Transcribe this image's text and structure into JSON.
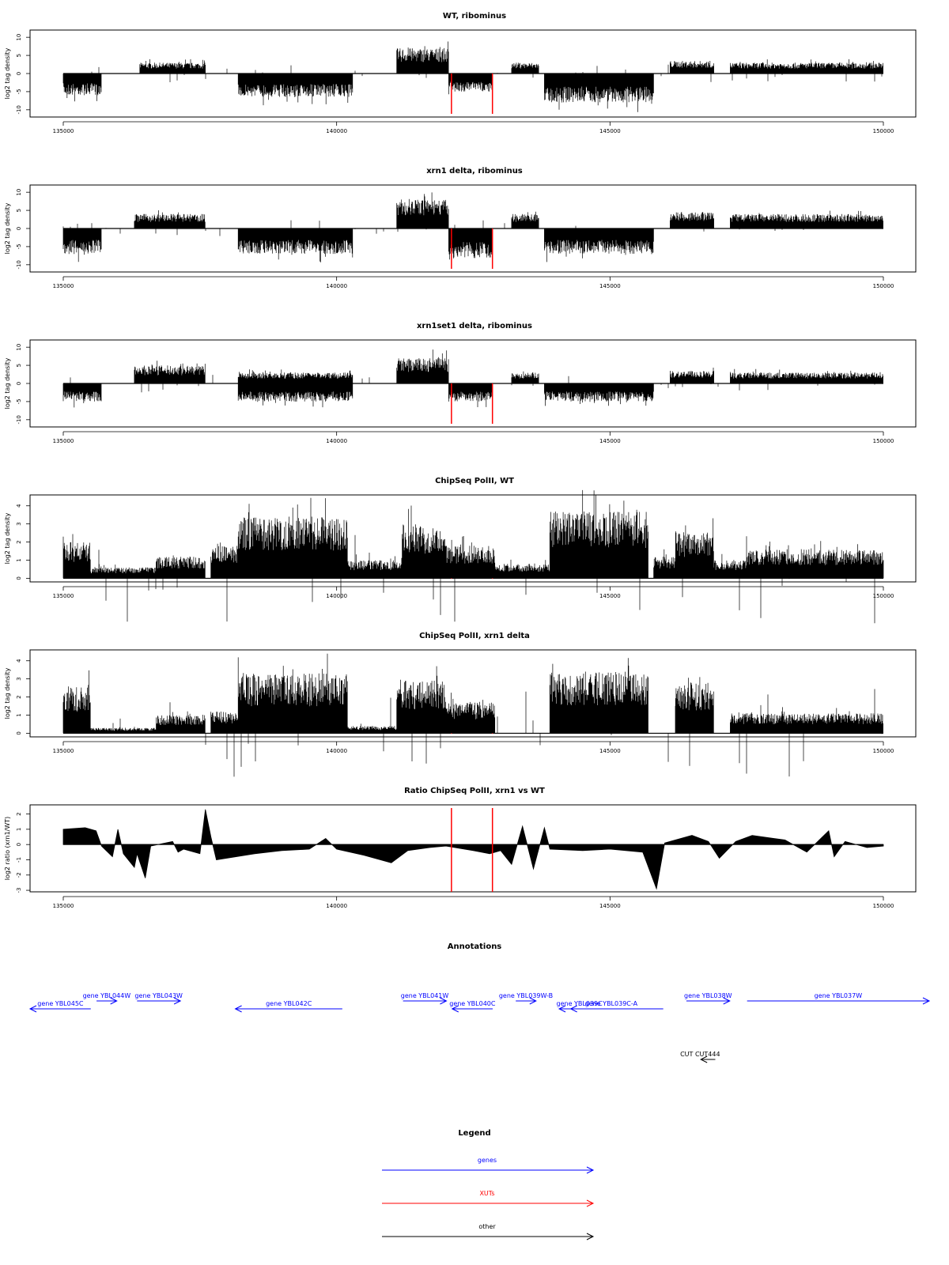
{
  "colors": {
    "signal": "#000000",
    "marker": "#ff0000",
    "genes": "#0000ff",
    "xuts": "#ff0000",
    "other": "#000000"
  },
  "chart_data": [
    {
      "type": "area",
      "title": "WT, ribominus",
      "ylabel": "log2 tag density",
      "xlim": [
        135000,
        150000
      ],
      "ylim": [
        -12,
        12
      ],
      "yticks": [
        -10,
        -5,
        0,
        5,
        10
      ],
      "xticks": [
        135000,
        140000,
        145000,
        150000
      ],
      "red_markers_x": [
        142100,
        142850
      ],
      "segments": [
        {
          "x0": 135000,
          "x1": 135700,
          "amp": -6
        },
        {
          "x0": 136400,
          "x1": 137600,
          "amp": 3
        },
        {
          "x0": 138200,
          "x1": 140300,
          "amp": -6.5
        },
        {
          "x0": 140300,
          "x1": 141100,
          "amp": 0
        },
        {
          "x0": 141100,
          "x1": 142050,
          "amp": 7
        },
        {
          "x0": 142050,
          "x1": 142850,
          "amp": -5
        },
        {
          "x0": 143200,
          "x1": 143700,
          "amp": 3
        },
        {
          "x0": 143800,
          "x1": 145800,
          "amp": -8
        },
        {
          "x0": 146100,
          "x1": 146900,
          "amp": 3.5
        },
        {
          "x0": 147200,
          "x1": 150000,
          "amp": 3
        }
      ]
    },
    {
      "type": "area",
      "title": "xrn1 delta, ribominus",
      "ylabel": "log2 tag density",
      "xlim": [
        135000,
        150000
      ],
      "ylim": [
        -12,
        12
      ],
      "yticks": [
        -10,
        -5,
        0,
        5,
        10
      ],
      "xticks": [
        135000,
        140000,
        145000,
        150000
      ],
      "red_markers_x": [
        142100,
        142850
      ],
      "segments": [
        {
          "x0": 135000,
          "x1": 135700,
          "amp": -7
        },
        {
          "x0": 136300,
          "x1": 137600,
          "amp": 4
        },
        {
          "x0": 138200,
          "x1": 140300,
          "amp": -7
        },
        {
          "x0": 141100,
          "x1": 142050,
          "amp": 8
        },
        {
          "x0": 142050,
          "x1": 142850,
          "amp": -8
        },
        {
          "x0": 143200,
          "x1": 143700,
          "amp": 4
        },
        {
          "x0": 143800,
          "x1": 145800,
          "amp": -7
        },
        {
          "x0": 146100,
          "x1": 146900,
          "amp": 4.5
        },
        {
          "x0": 147200,
          "x1": 150000,
          "amp": 4
        }
      ]
    },
    {
      "type": "area",
      "title": "xrn1set1 delta, ribominus",
      "ylabel": "log2 tag density",
      "xlim": [
        135000,
        150000
      ],
      "ylim": [
        -12,
        12
      ],
      "yticks": [
        -10,
        -5,
        0,
        5,
        10
      ],
      "xticks": [
        135000,
        140000,
        145000,
        150000
      ],
      "red_markers_x": [
        142100,
        142850
      ],
      "segments": [
        {
          "x0": 135000,
          "x1": 135700,
          "amp": -5
        },
        {
          "x0": 136300,
          "x1": 137600,
          "amp": 5
        },
        {
          "x0": 138200,
          "x1": 140300,
          "amp": -5
        },
        {
          "x0": 138200,
          "x1": 140300,
          "amp": 3
        },
        {
          "x0": 141100,
          "x1": 142050,
          "amp": 7
        },
        {
          "x0": 142050,
          "x1": 142850,
          "amp": -5
        },
        {
          "x0": 143200,
          "x1": 143700,
          "amp": 3
        },
        {
          "x0": 143800,
          "x1": 145800,
          "amp": -5
        },
        {
          "x0": 146100,
          "x1": 146900,
          "amp": 3.5
        },
        {
          "x0": 147200,
          "x1": 150000,
          "amp": 3
        }
      ]
    },
    {
      "type": "bar",
      "title": "ChipSeq PolII, WT",
      "ylabel": "log2 tag density",
      "xlim": [
        135000,
        150000
      ],
      "ylim": [
        -0.2,
        4.6
      ],
      "yticks": [
        0,
        1,
        2,
        3,
        4
      ],
      "xticks": [
        135000,
        140000,
        145000,
        150000
      ],
      "red_markers_x": [
        142100,
        142850
      ],
      "segments": [
        {
          "x0": 135000,
          "x1": 135500,
          "amp": 2
        },
        {
          "x0": 135500,
          "x1": 136700,
          "amp": 0.6
        },
        {
          "x0": 136700,
          "x1": 137600,
          "amp": 1.2
        },
        {
          "x0": 137700,
          "x1": 138200,
          "amp": 1.8
        },
        {
          "x0": 138200,
          "x1": 140200,
          "amp": 3.4
        },
        {
          "x0": 140200,
          "x1": 141200,
          "amp": 1
        },
        {
          "x0": 141200,
          "x1": 142000,
          "amp": 3
        },
        {
          "x0": 142000,
          "x1": 142900,
          "amp": 1.8
        },
        {
          "x0": 142900,
          "x1": 143900,
          "amp": 0.8
        },
        {
          "x0": 143900,
          "x1": 145700,
          "amp": 3.7
        },
        {
          "x0": 145800,
          "x1": 146200,
          "amp": 1.2
        },
        {
          "x0": 146200,
          "x1": 146900,
          "amp": 2.6
        },
        {
          "x0": 146900,
          "x1": 147500,
          "amp": 1
        },
        {
          "x0": 147500,
          "x1": 150000,
          "amp": 1.6
        }
      ]
    },
    {
      "type": "bar",
      "title": "ChipSeq PolII, xrn1 delta",
      "ylabel": "log2 tag density",
      "xlim": [
        135000,
        150000
      ],
      "ylim": [
        -0.2,
        4.6
      ],
      "yticks": [
        0,
        1,
        2,
        3,
        4
      ],
      "xticks": [
        135000,
        140000,
        145000,
        150000
      ],
      "red_markers_x": [
        142100,
        142850
      ],
      "segments": [
        {
          "x0": 135000,
          "x1": 135500,
          "amp": 2.6
        },
        {
          "x0": 135500,
          "x1": 136700,
          "amp": 0.3
        },
        {
          "x0": 136700,
          "x1": 137600,
          "amp": 1
        },
        {
          "x0": 137700,
          "x1": 138200,
          "amp": 1.2
        },
        {
          "x0": 138200,
          "x1": 140200,
          "amp": 3.3
        },
        {
          "x0": 140200,
          "x1": 141100,
          "amp": 0.4
        },
        {
          "x0": 141100,
          "x1": 142000,
          "amp": 2.9
        },
        {
          "x0": 142000,
          "x1": 142900,
          "amp": 1.7
        },
        {
          "x0": 143900,
          "x1": 145700,
          "amp": 3.4
        },
        {
          "x0": 146200,
          "x1": 146900,
          "amp": 2.8
        },
        {
          "x0": 147200,
          "x1": 150000,
          "amp": 1.1
        }
      ]
    },
    {
      "type": "area",
      "title": "Ratio ChipSeq PolII, xrn1 vs WT",
      "ylabel": "log2 ratio (xrn1/WT)",
      "xlim": [
        135000,
        150000
      ],
      "ylim": [
        -3.1,
        2.6
      ],
      "yticks": [
        -3,
        -2,
        -1,
        0,
        1,
        2
      ],
      "xticks": [
        135000,
        140000,
        145000,
        150000
      ],
      "red_markers_x": [
        142100,
        142850
      ],
      "profile": [
        [
          135000,
          1.0
        ],
        [
          135400,
          1.1
        ],
        [
          135600,
          0.9
        ],
        [
          135700,
          -0.1
        ],
        [
          135900,
          -0.8
        ],
        [
          136000,
          1.0
        ],
        [
          136100,
          -0.6
        ],
        [
          136300,
          -1.5
        ],
        [
          136350,
          -0.6
        ],
        [
          136500,
          -2.2
        ],
        [
          136600,
          -0.1
        ],
        [
          137000,
          0.2
        ],
        [
          137100,
          -0.5
        ],
        [
          137200,
          -0.3
        ],
        [
          137500,
          -0.6
        ],
        [
          137600,
          2.3
        ],
        [
          137700,
          0.5
        ],
        [
          137800,
          -1.0
        ],
        [
          138500,
          -0.6
        ],
        [
          139000,
          -0.4
        ],
        [
          139500,
          -0.3
        ],
        [
          139800,
          0.4
        ],
        [
          140000,
          -0.3
        ],
        [
          140500,
          -0.7
        ],
        [
          141000,
          -1.2
        ],
        [
          141300,
          -0.4
        ],
        [
          141700,
          -0.2
        ],
        [
          142000,
          -0.1
        ],
        [
          142500,
          -0.4
        ],
        [
          142800,
          -0.6
        ],
        [
          143000,
          -0.4
        ],
        [
          143200,
          -1.3
        ],
        [
          143400,
          1.2
        ],
        [
          143600,
          -1.6
        ],
        [
          143800,
          1.1
        ],
        [
          143900,
          -0.3
        ],
        [
          144500,
          -0.4
        ],
        [
          145000,
          -0.3
        ],
        [
          145600,
          -0.5
        ],
        [
          145850,
          -2.9
        ],
        [
          146000,
          0.1
        ],
        [
          146500,
          0.6
        ],
        [
          146800,
          0.2
        ],
        [
          147000,
          -0.9
        ],
        [
          147300,
          0.2
        ],
        [
          147600,
          0.6
        ],
        [
          148000,
          0.4
        ],
        [
          148200,
          0.3
        ],
        [
          148600,
          -0.5
        ],
        [
          149000,
          0.9
        ],
        [
          149100,
          -0.8
        ],
        [
          149300,
          0.2
        ],
        [
          149700,
          -0.2
        ],
        [
          150000,
          -0.1
        ]
      ]
    }
  ],
  "annotations": {
    "title": "Annotations",
    "xlim": [
      134850,
      150400
    ],
    "items": [
      {
        "label": "gene YBL045C",
        "x0": 134850,
        "x1": 135900,
        "dir": "left",
        "row": 0
      },
      {
        "label": "gene YBL044W",
        "x0": 136000,
        "x1": 136350,
        "dir": "right",
        "row": 1
      },
      {
        "label": "gene YBL043W",
        "x0": 136700,
        "x1": 137450,
        "dir": "right",
        "row": 1
      },
      {
        "label": "gene YBL042C",
        "x0": 138400,
        "x1": 140250,
        "dir": "left",
        "row": 0
      },
      {
        "label": "gene YBL041W",
        "x0": 141300,
        "x1": 142050,
        "dir": "right",
        "row": 1
      },
      {
        "label": "gene YBL040C",
        "x0": 142150,
        "x1": 142850,
        "dir": "left",
        "row": 0
      },
      {
        "label": "gene YBL039W-B",
        "x0": 143250,
        "x1": 143600,
        "dir": "right",
        "row": 1
      },
      {
        "label": "gene YBL039C-A",
        "x0": 144000,
        "x1": 145800,
        "dir": "left",
        "row": 0
      },
      {
        "label": "gene YBL039C",
        "x0": 144200,
        "x1": 144500,
        "dir": "left",
        "row": 0
      },
      {
        "label": "gene YBL038W",
        "x0": 146200,
        "x1": 146950,
        "dir": "right",
        "row": 1
      },
      {
        "label": "gene YBL037W",
        "x0": 147250,
        "x1": 150400,
        "dir": "right",
        "row": 1
      }
    ],
    "other": [
      {
        "label": "CUT CUT444",
        "x0": 146450,
        "x1": 146700,
        "dir": "left"
      }
    ]
  },
  "legend": {
    "title": "Legend",
    "items": [
      {
        "label": "genes",
        "color": "#0000ff"
      },
      {
        "label": "XUTs",
        "color": "#ff0000"
      },
      {
        "label": "other",
        "color": "#000000"
      }
    ]
  }
}
